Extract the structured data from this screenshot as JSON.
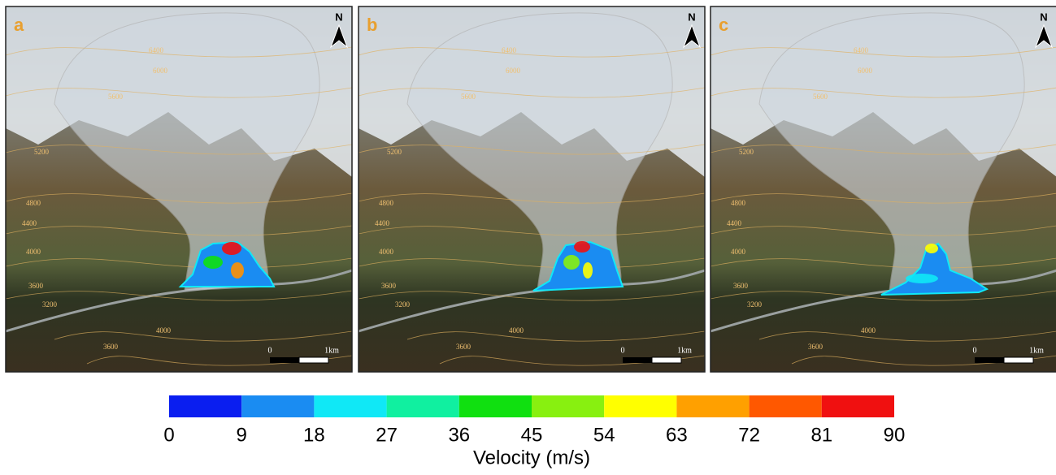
{
  "panels": [
    {
      "label": "a"
    },
    {
      "label": "b"
    },
    {
      "label": "c"
    }
  ],
  "north_label": "N",
  "scale_bar": {
    "start": "0",
    "end": "1km"
  },
  "contour_labels": [
    "6400",
    "6000",
    "5600",
    "5200",
    "4800",
    "4400",
    "4000",
    "3600",
    "3200",
    "4000",
    "3600"
  ],
  "colorbar": {
    "label": "Velocity (m/s)",
    "ticks": [
      0,
      9,
      18,
      27,
      36,
      45,
      54,
      63,
      72,
      81,
      90
    ],
    "colors": [
      "#0a1ef0",
      "#1a8cf2",
      "#10e8f6",
      "#10f0a0",
      "#10e010",
      "#88f010",
      "#ffff00",
      "#ffa000",
      "#ff5800",
      "#f01010"
    ]
  }
}
